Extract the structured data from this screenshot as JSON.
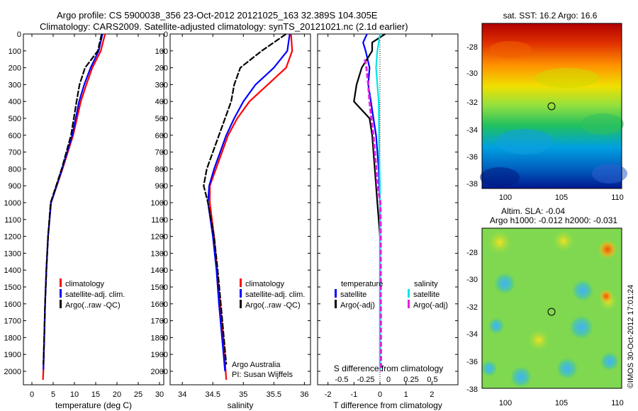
{
  "header": {
    "line1": "Argo profile: CS 5900038_356 23-Oct-2012 20121025_163 32.389S 104.305E",
    "line2": "Climatology: CARS2009. Satellite-adjusted climatology: synTS_20121021.nc (2.1d earlier)"
  },
  "colors": {
    "climatology": "#ff0000",
    "satellite": "#0000ff",
    "argo": "#000000",
    "sal_satellite": "#00e5e5",
    "sal_argo": "#e020e0"
  },
  "chart_data": [
    {
      "type": "line",
      "panel": "temperature",
      "xlabel": "temperature (deg C)",
      "ylabel": "",
      "xlim": [
        -2,
        31
      ],
      "ylim": [
        2080,
        0
      ],
      "x_ticks": [
        0,
        5,
        10,
        15,
        20,
        25,
        30
      ],
      "y_ticks": [
        0,
        100,
        200,
        300,
        400,
        500,
        600,
        700,
        800,
        900,
        1000,
        1100,
        1200,
        1300,
        1400,
        1500,
        1600,
        1700,
        1800,
        1900,
        2000
      ],
      "legend": [
        "climatology",
        "satellite-adj. clim.",
        "Argo(..raw -QC)"
      ],
      "series": [
        {
          "name": "climatology",
          "depth": [
            0,
            100,
            200,
            300,
            400,
            600,
            800,
            1000,
            1200,
            1400,
            1600,
            1800,
            2000,
            2050
          ],
          "values": [
            17.2,
            16.2,
            14.2,
            12.8,
            11.5,
            9.7,
            7.2,
            4.5,
            3.8,
            3.4,
            3.1,
            2.9,
            2.7,
            2.6
          ]
        },
        {
          "name": "satellite-adj. clim.",
          "depth": [
            0,
            100,
            200,
            300,
            400,
            600,
            800,
            1000,
            1200,
            1400,
            1600,
            1800,
            1990
          ],
          "values": [
            16.6,
            15.7,
            13.8,
            12.3,
            11.1,
            9.5,
            7.1,
            4.5,
            3.8,
            3.4,
            3.1,
            2.9,
            2.7
          ]
        },
        {
          "name": "Argo(..raw -QC)",
          "depth": [
            0,
            100,
            150,
            200,
            300,
            400,
            600,
            800,
            1000,
            1200,
            1400,
            1600,
            1800,
            1960
          ],
          "values": [
            16.4,
            15.5,
            14.0,
            12.5,
            11.2,
            10.5,
            9.2,
            7.0,
            4.4,
            3.8,
            3.4,
            3.1,
            2.9,
            2.7
          ]
        }
      ]
    },
    {
      "type": "line",
      "panel": "salinity",
      "xlabel": "salinity",
      "ylabel": "",
      "xlim": [
        33.8,
        36.1
      ],
      "ylim": [
        2080,
        0
      ],
      "x_ticks": [
        34,
        34.5,
        35,
        35.5,
        36
      ],
      "legend": [
        "climatology",
        "satellite-adj. clim.",
        "Argo(..raw -QC)"
      ],
      "annotations": [
        "Argo Australia",
        "PI: Susan Wijffels"
      ],
      "series": [
        {
          "name": "climatology",
          "depth": [
            0,
            100,
            200,
            300,
            400,
            500,
            600,
            700,
            800,
            900,
            1000,
            1200,
            1400,
            1600,
            1800,
            2050
          ],
          "values": [
            35.78,
            35.8,
            35.7,
            35.4,
            35.1,
            34.9,
            34.75,
            34.65,
            34.55,
            34.45,
            34.45,
            34.52,
            34.57,
            34.62,
            34.67,
            34.72
          ]
        },
        {
          "name": "satellite-adj. clim.",
          "depth": [
            0,
            100,
            200,
            300,
            400,
            500,
            600,
            700,
            800,
            900,
            1000,
            1200,
            1400,
            1600,
            1800,
            2000
          ],
          "values": [
            35.76,
            35.72,
            35.5,
            35.2,
            35.0,
            34.85,
            34.72,
            34.62,
            34.52,
            34.44,
            34.42,
            34.5,
            34.56,
            34.6,
            34.65,
            34.7
          ]
        },
        {
          "name": "Argo(..raw -QC)",
          "depth": [
            0,
            100,
            200,
            300,
            400,
            500,
            600,
            700,
            800,
            900,
            1000,
            1200,
            1400,
            1600,
            1800,
            1960
          ],
          "values": [
            35.7,
            35.3,
            34.95,
            34.85,
            34.8,
            34.7,
            34.6,
            34.5,
            34.4,
            34.35,
            34.42,
            34.52,
            34.58,
            34.63,
            34.68,
            34.72
          ]
        }
      ]
    },
    {
      "type": "line",
      "panel": "difference",
      "xlabel": "T difference from climatology",
      "top_xlabel": "S difference from climatology",
      "xlim": [
        -2.4,
        3.0
      ],
      "ylim": [
        2080,
        0
      ],
      "x_ticks": [
        -2,
        -1,
        0,
        1,
        2
      ],
      "top_x_ticks": [
        "-0.5",
        "-0.25",
        "0",
        "0.25",
        "0.5"
      ],
      "legend_temperature_title": "temperature",
      "legend_salinity_title": "salinity",
      "legend": [
        "satellite",
        "Argo(-adj)",
        "satellite",
        "Argo(-adj)"
      ],
      "series": [
        {
          "name": "satellite",
          "group": "temperature",
          "depth": [
            0,
            50,
            100,
            200,
            300,
            400,
            500,
            600,
            800,
            1000,
            1500,
            2000
          ],
          "values": [
            -0.5,
            -0.65,
            -0.55,
            -0.4,
            -0.45,
            -0.35,
            -0.25,
            -0.15,
            -0.05,
            0,
            0,
            0
          ]
        },
        {
          "name": "Argo(-adj)",
          "group": "temperature",
          "depth": [
            0,
            50,
            100,
            200,
            300,
            400,
            500,
            600,
            800,
            1000,
            1100,
            1200
          ],
          "values": [
            0.2,
            -0.3,
            -0.3,
            -0.7,
            -0.9,
            -1.0,
            -0.4,
            -0.3,
            -0.2,
            -0.1,
            -0.05,
            0
          ]
        },
        {
          "name": "satellite",
          "group": "salinity",
          "depth": [
            0,
            50,
            100,
            200,
            300,
            400,
            500,
            700,
            900,
            1000,
            1500,
            2000
          ],
          "values": [
            0.0,
            -0.05,
            -0.1,
            -0.15,
            -0.1,
            -0.05,
            -0.04,
            -0.03,
            0.0,
            0.0,
            0.0,
            0.0
          ]
        },
        {
          "name": "Argo(-adj)",
          "group": "salinity",
          "depth": [
            150,
            200,
            300,
            400,
            500,
            600,
            700,
            800,
            900,
            1000,
            1200,
            1500,
            2000
          ],
          "values": [
            -0.58,
            -0.52,
            -0.45,
            -0.4,
            -0.33,
            -0.25,
            -0.2,
            -0.14,
            -0.1,
            0.02,
            0.03,
            0.03,
            0.04
          ]
        }
      ]
    }
  ],
  "maps": [
    {
      "title": "sat. SST: 16.2 Argo: 16.6",
      "x_ticks": [
        "100",
        "105",
        "110"
      ],
      "y_ticks": [
        "-28",
        "-30",
        "-32",
        "-34",
        "-36",
        "-38"
      ],
      "marker": {
        "lon": 104.3,
        "lat": -32.4
      }
    },
    {
      "title_line1": "Altim. SLA: -0.04",
      "title_line2": "Argo h1000: -0.012 h2000: -0.031",
      "x_ticks": [
        "100",
        "105",
        "110"
      ],
      "y_ticks": [
        "-28",
        "-30",
        "-32",
        "-34",
        "-36",
        "-38"
      ],
      "marker": {
        "lon": 104.3,
        "lat": -32.4
      }
    }
  ],
  "side_text": "©IMOS 30-Oct-2012 17:01:24"
}
